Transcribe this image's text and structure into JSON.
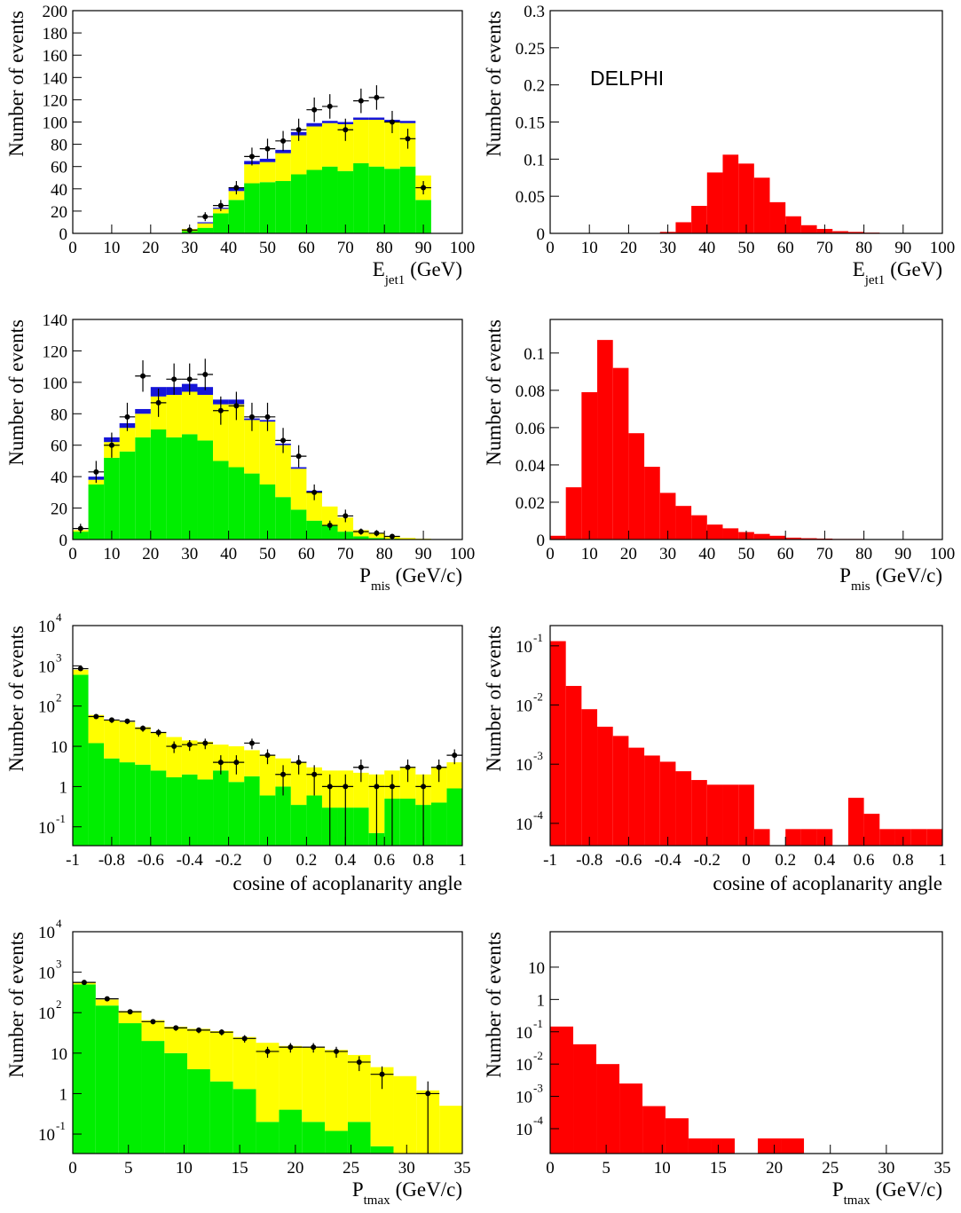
{
  "chart_data": [
    {
      "type": "histogram",
      "bins": [
        0,
        4,
        8,
        12,
        16,
        20,
        24,
        28,
        32,
        36,
        40,
        44,
        48,
        52,
        56,
        60,
        64,
        68,
        72,
        76,
        80,
        84,
        88,
        92,
        96,
        100
      ],
      "xlim": [
        0,
        100
      ],
      "xticks": [
        0,
        10,
        20,
        30,
        40,
        50,
        60,
        70,
        80,
        90,
        100
      ],
      "ylim": [
        0,
        200
      ],
      "yticks": [
        0,
        20,
        40,
        60,
        80,
        100,
        120,
        140,
        160,
        180,
        200
      ],
      "log_y": false,
      "y_label": "Number of events",
      "x_label": {
        "symbol": "E",
        "subscript": "jet1",
        "unit": "(GeV)"
      },
      "series": [
        {
          "color": "#00ee00",
          "values": [
            0,
            0,
            0,
            0,
            0,
            0,
            0,
            2,
            5,
            18,
            30,
            45,
            46,
            47,
            53,
            57,
            60,
            56,
            63,
            60,
            58,
            60,
            30,
            0,
            0
          ]
        },
        {
          "color": "#ffff00",
          "values": [
            0,
            0,
            0,
            0,
            0,
            0,
            0,
            2,
            4,
            4,
            8,
            17,
            18,
            25,
            35,
            39,
            39,
            42,
            39,
            42,
            42,
            39,
            22,
            0,
            0
          ]
        },
        {
          "color": "#1515d8",
          "values": [
            0,
            0,
            0,
            0,
            0,
            0,
            0,
            0,
            1,
            1,
            3,
            3,
            3,
            3,
            3,
            3,
            2,
            2,
            2,
            2,
            2,
            2,
            0,
            0,
            0
          ]
        }
      ],
      "data_points": {
        "color": "#000000",
        "values": [
          null,
          null,
          null,
          null,
          null,
          null,
          null,
          3,
          15,
          25,
          41,
          69,
          76,
          83,
          93,
          111,
          114,
          93,
          119,
          122,
          100,
          85,
          41,
          null,
          null
        ],
        "errors": [
          null,
          null,
          null,
          null,
          null,
          null,
          null,
          2,
          4,
          5,
          6,
          8,
          9,
          9,
          10,
          11,
          11,
          10,
          11,
          11,
          10,
          9,
          6,
          null,
          null
        ]
      }
    },
    {
      "type": "histogram",
      "bins": [
        0,
        4,
        8,
        12,
        16,
        20,
        24,
        28,
        32,
        36,
        40,
        44,
        48,
        52,
        56,
        60,
        64,
        68,
        72,
        76,
        80,
        84,
        88,
        92,
        96,
        100
      ],
      "xlim": [
        0,
        100
      ],
      "xticks": [
        0,
        10,
        20,
        30,
        40,
        50,
        60,
        70,
        80,
        90,
        100
      ],
      "ylim": [
        0,
        0.3
      ],
      "yticks": [
        0,
        0.05,
        0.1,
        0.15,
        0.2,
        0.25,
        0.3
      ],
      "log_y": false,
      "y_label": "Number of events",
      "x_label": {
        "symbol": "E",
        "subscript": "jet1",
        "unit": "(GeV)"
      },
      "annotation": "DELPHI",
      "series": [
        {
          "color": "#ff0000",
          "values": [
            0,
            0,
            0,
            0,
            0,
            0,
            0,
            0.002,
            0.015,
            0.037,
            0.082,
            0.106,
            0.094,
            0.075,
            0.042,
            0.023,
            0.011,
            0.006,
            0.003,
            0.002,
            0.001,
            0.0005,
            0.0003,
            0.0002,
            0
          ]
        }
      ]
    },
    {
      "type": "histogram",
      "bins": [
        0,
        4,
        8,
        12,
        16,
        20,
        24,
        28,
        32,
        36,
        40,
        44,
        48,
        52,
        56,
        60,
        64,
        68,
        72,
        76,
        80,
        84,
        88,
        92,
        96,
        100
      ],
      "xlim": [
        0,
        100
      ],
      "xticks": [
        0,
        10,
        20,
        30,
        40,
        50,
        60,
        70,
        80,
        90,
        100
      ],
      "ylim": [
        0,
        140
      ],
      "yticks": [
        0,
        20,
        40,
        60,
        80,
        100,
        120,
        140
      ],
      "log_y": false,
      "y_label": "Number of events",
      "x_label": {
        "symbol": "P",
        "subscript": "mis",
        "unit": "(GeV/c)"
      },
      "series": [
        {
          "color": "#00ee00",
          "values": [
            5,
            35,
            52,
            56,
            65,
            70,
            65,
            67,
            63,
            50,
            46,
            42,
            35,
            27,
            19,
            12,
            9,
            5,
            2,
            1,
            0.5,
            0,
            0,
            0,
            0
          ]
        },
        {
          "color": "#ffff00",
          "values": [
            1,
            3,
            10,
            15,
            15,
            21,
            27,
            27,
            29,
            36,
            40,
            34,
            40,
            33,
            26,
            18,
            12,
            9,
            4,
            3,
            1.5,
            1,
            0.5,
            0,
            0
          ]
        },
        {
          "color": "#1515d8",
          "values": [
            0,
            2,
            3,
            3,
            3,
            6,
            5,
            5,
            5,
            3,
            3,
            1,
            1,
            1,
            1,
            1,
            0,
            0,
            0,
            0,
            0,
            0,
            0,
            0,
            0
          ]
        }
      ],
      "data_points": {
        "color": "#000000",
        "values": [
          7,
          43,
          60,
          78,
          104,
          87,
          102,
          102,
          105,
          82,
          85,
          78,
          78,
          63,
          53,
          30,
          9,
          15,
          5,
          4,
          2,
          null,
          null,
          null,
          null
        ],
        "errors": [
          3,
          7,
          8,
          9,
          10,
          9,
          10,
          10,
          10,
          9,
          9,
          9,
          9,
          8,
          7,
          5,
          3,
          4,
          2,
          2,
          1.4,
          null,
          null,
          null,
          null
        ]
      }
    },
    {
      "type": "histogram",
      "bins": [
        0,
        4,
        8,
        12,
        16,
        20,
        24,
        28,
        32,
        36,
        40,
        44,
        48,
        52,
        56,
        60,
        64,
        68,
        72,
        76,
        80,
        84,
        88,
        92,
        96,
        100
      ],
      "xlim": [
        0,
        100
      ],
      "xticks": [
        0,
        10,
        20,
        30,
        40,
        50,
        60,
        70,
        80,
        90,
        100
      ],
      "ylim": [
        0,
        0.118
      ],
      "yticks": [
        0,
        0.02,
        0.04,
        0.06,
        0.08,
        0.1
      ],
      "log_y": false,
      "y_label": "Number of events",
      "x_label": {
        "symbol": "P",
        "subscript": "mis",
        "unit": "(GeV/c)"
      },
      "series": [
        {
          "color": "#ff0000",
          "values": [
            0.002,
            0.028,
            0.079,
            0.107,
            0.092,
            0.057,
            0.039,
            0.025,
            0.018,
            0.013,
            0.008,
            0.006,
            0.004,
            0.003,
            0.002,
            0.001,
            0.0007,
            0.0005,
            0.0003,
            0.0003,
            0.0002,
            0.0002,
            0.0002,
            0.0002,
            0.0002
          ]
        }
      ]
    },
    {
      "type": "histogram",
      "bins": [
        -1,
        -0.92,
        -0.84,
        -0.76,
        -0.68,
        -0.6,
        -0.52,
        -0.44,
        -0.36,
        -0.28,
        -0.2,
        -0.12,
        -0.04,
        0.04,
        0.12,
        0.2,
        0.28,
        0.36,
        0.44,
        0.52,
        0.6,
        0.68,
        0.76,
        0.84,
        0.92,
        1
      ],
      "xlim": [
        -1,
        1
      ],
      "xticks": [
        -1,
        -0.8,
        -0.6,
        -0.4,
        -0.2,
        0,
        0.2,
        0.4,
        0.6,
        0.8,
        1
      ],
      "ylim": [
        0.034,
        10000
      ],
      "log_y": true,
      "yticks": [
        {
          "value": 10000,
          "label": "10",
          "exponent": "4"
        },
        {
          "value": 1000,
          "label": "10",
          "exponent": "3"
        },
        {
          "value": 100,
          "label": "10",
          "exponent": "2"
        },
        10,
        1,
        {
          "value": 0.1,
          "label": "10",
          "exponent": "-1"
        }
      ],
      "y_label": "Number of events",
      "x_label": "cosine of acoplanarity angle",
      "series": [
        {
          "color": "#00ee00",
          "values": [
            600,
            12,
            5,
            4,
            3.5,
            2.5,
            1.7,
            2,
            1.5,
            2.5,
            1.3,
            1.8,
            0.6,
            1.0,
            0.35,
            0.6,
            0.3,
            0.3,
            0.3,
            0.07,
            0.5,
            0.5,
            0.35,
            0.4,
            0.9
          ]
        },
        {
          "color": "#ffff00",
          "values": [
            200,
            48,
            40,
            36,
            26.5,
            19.5,
            15.3,
            12,
            11.5,
            8.5,
            8.7,
            6.2,
            5.4,
            4,
            3.65,
            2.4,
            2.2,
            2.2,
            1.9,
            1.93,
            2,
            2.5,
            1.65,
            2.6,
            3.1
          ]
        }
      ],
      "data_points": {
        "color": "#000000",
        "values": [
          850,
          55,
          45,
          42,
          28,
          22,
          10,
          11,
          12,
          4,
          4,
          12,
          6,
          2,
          4,
          2,
          1,
          1,
          3,
          1,
          1,
          3,
          1,
          3,
          6
        ],
        "errors": [
          29,
          7,
          7,
          6.5,
          5,
          4.7,
          3.2,
          3.3,
          3.5,
          2,
          2,
          3.5,
          2.4,
          1.4,
          2,
          1.4,
          1,
          1,
          1.7,
          1,
          1,
          1.7,
          1,
          1.7,
          2.4
        ]
      }
    },
    {
      "type": "histogram",
      "bins": [
        -1,
        -0.92,
        -0.84,
        -0.76,
        -0.68,
        -0.6,
        -0.52,
        -0.44,
        -0.36,
        -0.28,
        -0.2,
        -0.12,
        -0.04,
        0.04,
        0.12,
        0.2,
        0.28,
        0.36,
        0.44,
        0.52,
        0.6,
        0.68,
        0.76,
        0.84,
        0.92,
        1
      ],
      "xlim": [
        -1,
        1
      ],
      "xticks": [
        -1,
        -0.8,
        -0.6,
        -0.4,
        -0.2,
        0,
        0.2,
        0.4,
        0.6,
        0.8,
        1
      ],
      "ylim": [
        4.2e-05,
        0.22
      ],
      "log_y": true,
      "yticks": [
        {
          "value": 0.1,
          "label": "10",
          "exponent": "-1"
        },
        {
          "value": 0.01,
          "label": "10",
          "exponent": "-2"
        },
        {
          "value": 0.001,
          "label": "10",
          "exponent": "-3"
        },
        {
          "value": 0.0001,
          "label": "10",
          "exponent": "-4"
        }
      ],
      "y_label": "Number of events",
      "x_label": "cosine of acoplanarity angle",
      "series": [
        {
          "color": "#ff0000",
          "values": [
            0.12,
            0.021,
            0.0085,
            0.0043,
            0.003,
            0.0019,
            0.0014,
            0.0011,
            0.00076,
            0.00054,
            0.00045,
            0.00045,
            0.00045,
            8e-05,
            0,
            8e-05,
            8e-05,
            8e-05,
            0,
            0.00027,
            0.000145,
            8e-05,
            8e-05,
            8e-05,
            8e-05
          ]
        }
      ]
    },
    {
      "type": "histogram",
      "bins": [
        0,
        2.06,
        4.12,
        6.18,
        8.24,
        10.29,
        12.35,
        14.41,
        16.47,
        18.53,
        20.59,
        22.65,
        24.71,
        26.76,
        28.82,
        30.88,
        32.94,
        35
      ],
      "xlim": [
        0,
        35
      ],
      "xticks": [
        0,
        5,
        10,
        15,
        20,
        25,
        30,
        35
      ],
      "ylim": [
        0.033,
        10000
      ],
      "log_y": true,
      "yticks": [
        {
          "value": 10000,
          "label": "10",
          "exponent": "4"
        },
        {
          "value": 1000,
          "label": "10",
          "exponent": "3"
        },
        {
          "value": 100,
          "label": "10",
          "exponent": "2"
        },
        10,
        1,
        {
          "value": 0.1,
          "label": "10",
          "exponent": "-1"
        }
      ],
      "y_label": "Number of events",
      "x_label": {
        "symbol": "P",
        "subscript": "tmax",
        "unit": "(GeV/c)"
      },
      "series": [
        {
          "color": "#00ee00",
          "values": [
            500,
            150,
            55,
            20,
            10,
            4,
            2,
            1.3,
            0.2,
            0.4,
            0.2,
            0.12,
            0.2,
            0.05,
            0,
            0,
            0
          ]
        },
        {
          "color": "#ffff00",
          "values": [
            60,
            60,
            55,
            45,
            35,
            36,
            33,
            23.7,
            17.8,
            14.6,
            13.8,
            11.88,
            8.8,
            4.45,
            2.7,
            1.2,
            0.5
          ]
        }
      ],
      "data_points": {
        "color": "#000000",
        "values": [
          560,
          220,
          105,
          60,
          42,
          37,
          33,
          23,
          11,
          14,
          14,
          11,
          6,
          3,
          null,
          1,
          null
        ],
        "errors": [
          24,
          15,
          10,
          8,
          6.5,
          6,
          5.7,
          4.8,
          3.3,
          3.7,
          3.7,
          3.3,
          2.4,
          1.7,
          null,
          1,
          null
        ]
      }
    },
    {
      "type": "histogram",
      "bins": [
        0,
        2.06,
        4.12,
        6.18,
        8.24,
        10.29,
        12.35,
        14.41,
        16.47,
        18.53,
        20.59,
        22.65,
        24.71,
        26.76,
        28.82,
        30.88,
        32.94,
        35
      ],
      "xlim": [
        0,
        35
      ],
      "xticks": [
        0,
        5,
        10,
        15,
        20,
        25,
        30,
        35
      ],
      "ylim": [
        1.7e-05,
        125
      ],
      "log_y": true,
      "yticks": [
        10,
        1,
        {
          "value": 0.1,
          "label": "10",
          "exponent": "-1"
        },
        {
          "value": 0.01,
          "label": "10",
          "exponent": "-2"
        },
        {
          "value": 0.001,
          "label": "10",
          "exponent": "-3"
        },
        {
          "value": 0.0001,
          "label": "10",
          "exponent": "-4"
        }
      ],
      "y_label": "Number of events",
      "x_label": {
        "symbol": "P",
        "subscript": "tmax",
        "unit": "(GeV/c)"
      },
      "series": [
        {
          "color": "#ff0000",
          "values": [
            0.145,
            0.041,
            0.01,
            0.0025,
            0.0005,
            0.00021,
            5e-05,
            5e-05,
            0,
            5e-05,
            5e-05,
            0,
            0,
            0,
            0,
            0,
            0
          ]
        }
      ]
    }
  ]
}
